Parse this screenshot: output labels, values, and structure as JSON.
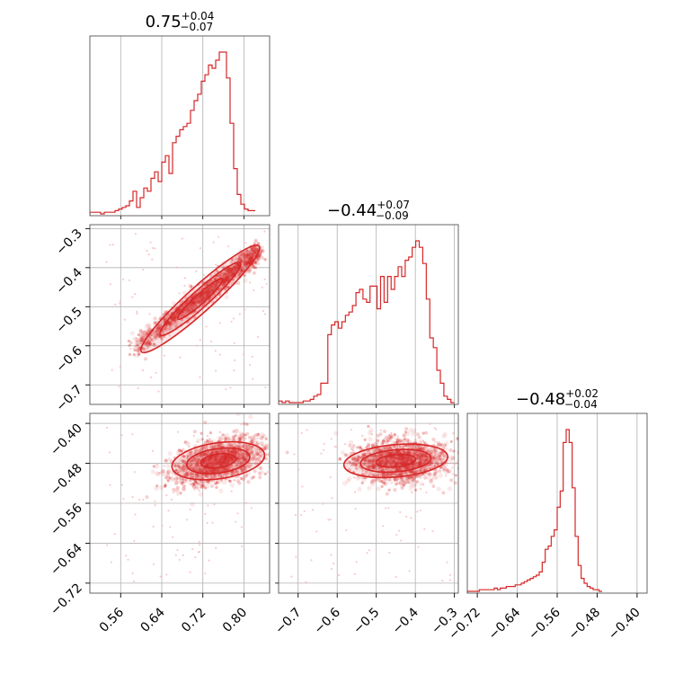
{
  "chart_data": {
    "type": "corner",
    "color": "#d62728",
    "params": [
      {
        "median": "0.75",
        "plus": "+0.04",
        "minus": "−0.07",
        "range": [
          0.5,
          0.85
        ]
      },
      {
        "median": "−0.44",
        "plus": "+0.07",
        "minus": "−0.09",
        "range": [
          -0.75,
          -0.29
        ]
      },
      {
        "median": "−0.48",
        "plus": "+0.02",
        "minus": "−0.04",
        "range": [
          -0.74,
          -0.38
        ]
      }
    ],
    "ticks": [
      {
        "values": [
          0.56,
          0.64,
          0.72,
          0.8
        ],
        "labels": [
          "0.56",
          "0.64",
          "0.72",
          "0.80"
        ]
      },
      {
        "values": [
          -0.7,
          -0.6,
          -0.5,
          -0.4,
          -0.3
        ],
        "labels": [
          "−0.7",
          "−0.6",
          "−0.5",
          "−0.4",
          "−0.3"
        ]
      },
      {
        "values": [
          -0.72,
          -0.64,
          -0.56,
          -0.48,
          -0.4
        ],
        "labels": [
          "−0.72",
          "−0.64",
          "−0.56",
          "−0.48",
          "−0.40"
        ]
      }
    ],
    "histograms": [
      {
        "param": 0,
        "bin_start": 0.5,
        "bin_width": 0.007,
        "heights": [
          1,
          1,
          1,
          0,
          1,
          1,
          1,
          2,
          3,
          4,
          5,
          8,
          14,
          4,
          10,
          16,
          14,
          22,
          26,
          20,
          32,
          36,
          25,
          44,
          48,
          52,
          54,
          56,
          64,
          70,
          74,
          82,
          86,
          92,
          90,
          95,
          100,
          100,
          84,
          56,
          28,
          12,
          6,
          3,
          2,
          2
        ]
      },
      {
        "param": 1,
        "bin_start": -0.75,
        "bin_width": 0.009,
        "heights": [
          1,
          0,
          1,
          0,
          0,
          0,
          0,
          1,
          1,
          2,
          4,
          5,
          12,
          12,
          42,
          48,
          50,
          46,
          50,
          54,
          56,
          60,
          68,
          70,
          64,
          62,
          72,
          72,
          58,
          78,
          62,
          78,
          70,
          78,
          84,
          78,
          88,
          90,
          96,
          100,
          96,
          86,
          64,
          40,
          34,
          20,
          12,
          4,
          2,
          0
        ]
      },
      {
        "param": 2,
        "bin_start": -0.74,
        "bin_width": 0.006,
        "heights": [
          0,
          0,
          0,
          0,
          1,
          1,
          1,
          1,
          1,
          2,
          1,
          2,
          2,
          3,
          3,
          3,
          4,
          4,
          5,
          6,
          7,
          8,
          9,
          10,
          12,
          18,
          26,
          28,
          34,
          38,
          52,
          62,
          92,
          100,
          92,
          64,
          34,
          16,
          8,
          5,
          3,
          2,
          1,
          1,
          0
        ]
      }
    ],
    "scatter_pairs": [
      {
        "x": 0,
        "y": 1,
        "density": "strong positive correlation: tight band from (0.58,-0.61) to (0.83,-0.36)"
      },
      {
        "x": 0,
        "y": 2,
        "density": "broad cloud centered near (0.75,-0.48)"
      },
      {
        "x": 1,
        "y": 2,
        "density": "broad cloud centered near (-0.43,-0.48)"
      }
    ],
    "grid": true
  }
}
